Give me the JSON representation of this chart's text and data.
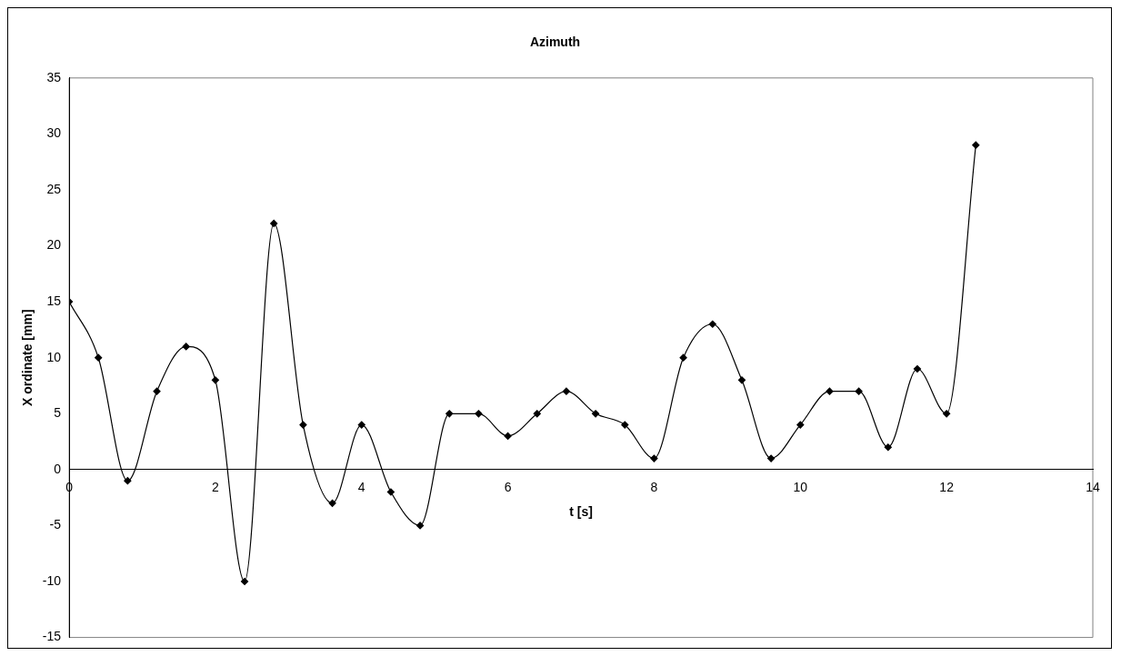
{
  "chart_data": {
    "type": "line",
    "title": "Azimuth",
    "xlabel": "t [s]",
    "ylabel": "X ordinate [mm]",
    "x": [
      0,
      0.4,
      0.8,
      1.2,
      1.6,
      2.0,
      2.4,
      2.8,
      3.2,
      3.6,
      4.0,
      4.4,
      4.8,
      5.2,
      5.6,
      6.0,
      6.4,
      6.8,
      7.2,
      7.6,
      8.0,
      8.4,
      8.8,
      9.2,
      9.6,
      10.0,
      10.4,
      10.8,
      11.2,
      11.6,
      12.0,
      12.4
    ],
    "series": [
      {
        "color": "#000000",
        "values": [
          15,
          10,
          -1,
          7,
          11,
          8,
          -10,
          22,
          4,
          -3,
          4,
          -2,
          -5,
          5,
          5,
          3,
          5,
          7,
          5,
          4,
          1,
          10,
          13,
          8,
          1,
          4,
          7,
          7,
          2,
          9,
          5,
          29
        ]
      }
    ],
    "xlim": [
      0,
      14
    ],
    "xticks": [
      0,
      2,
      4,
      6,
      8,
      10,
      12,
      14
    ],
    "ylim": [
      -15,
      35
    ],
    "yticks": [
      -15,
      -10,
      -5,
      0,
      5,
      10,
      15,
      20,
      25,
      30,
      35
    ],
    "grid": false,
    "legend": false,
    "marker": "diamond",
    "line_style": "solid"
  }
}
